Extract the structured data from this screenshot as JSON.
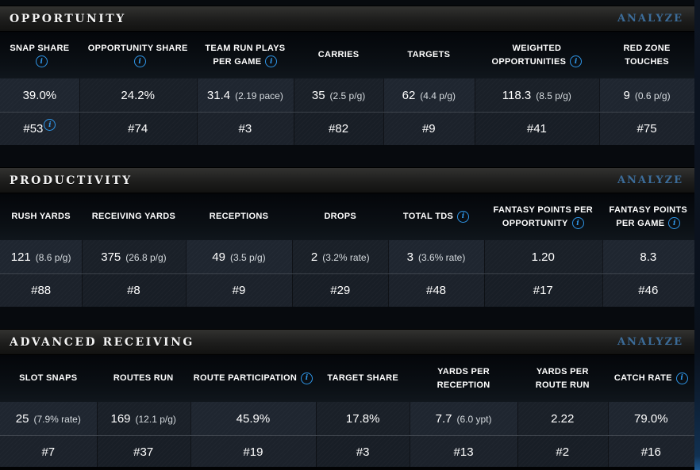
{
  "ui": {
    "accent_color": "#3c6c99",
    "info_icon_color": "#2f96e8",
    "icons": {
      "info": "circled-i"
    }
  },
  "sections": [
    {
      "title": "OPPORTUNITY",
      "analyze_label": "ANALYZE",
      "columns": [
        {
          "label": "SNAP SHARE",
          "info": true,
          "value": "39.0%",
          "rank": "#53",
          "rank_info": true
        },
        {
          "label": "OPPORTUNITY SHARE",
          "info": true,
          "value": "24.2%",
          "rank": "#74"
        },
        {
          "label": "TEAM RUN PLAYS PER GAME",
          "info": true,
          "value": "31.4",
          "note": "(2.19 pace)",
          "rank": "#3"
        },
        {
          "label": "CARRIES",
          "value": "35",
          "note": "(2.5 p/g)",
          "rank": "#82"
        },
        {
          "label": "TARGETS",
          "value": "62",
          "note": "(4.4 p/g)",
          "rank": "#9"
        },
        {
          "label": "WEIGHTED OPPORTUNITIES",
          "info": true,
          "value": "118.3",
          "note": "(8.5 p/g)",
          "rank": "#41"
        },
        {
          "label": "RED ZONE TOUCHES",
          "value": "9",
          "note": "(0.6 p/g)",
          "rank": "#75"
        }
      ]
    },
    {
      "title": "PRODUCTIVITY",
      "analyze_label": "ANALYZE",
      "columns": [
        {
          "label": "RUSH YARDS",
          "value": "121",
          "note": "(8.6 p/g)",
          "rank": "#88"
        },
        {
          "label": "RECEIVING YARDS",
          "value": "375",
          "note": "(26.8 p/g)",
          "rank": "#8"
        },
        {
          "label": "RECEPTIONS",
          "value": "49",
          "note": "(3.5 p/g)",
          "rank": "#9"
        },
        {
          "label": "DROPS",
          "value": "2",
          "note": "(3.2% rate)",
          "rank": "#29"
        },
        {
          "label": "TOTAL TDS",
          "info": true,
          "value": "3",
          "note": "(3.6% rate)",
          "rank": "#48"
        },
        {
          "label": "FANTASY POINTS PER OPPORTUNITY",
          "info": true,
          "value": "1.20",
          "rank": "#17"
        },
        {
          "label": "FANTASY POINTS PER GAME",
          "info": true,
          "value": "8.3",
          "rank": "#46"
        }
      ]
    },
    {
      "title": "ADVANCED RECEIVING",
      "analyze_label": "ANALYZE",
      "columns": [
        {
          "label": "SLOT SNAPS",
          "value": "25",
          "note": "(7.9% rate)",
          "rank": "#7"
        },
        {
          "label": "ROUTES RUN",
          "value": "169",
          "note": "(12.1 p/g)",
          "rank": "#37"
        },
        {
          "label": "ROUTE PARTICIPATION",
          "info": true,
          "value": "45.9%",
          "rank": "#19"
        },
        {
          "label": "TARGET SHARE",
          "value": "17.8%",
          "rank": "#3"
        },
        {
          "label": "YARDS PER RECEPTION",
          "value": "7.7",
          "note": "(6.0 ypt)",
          "rank": "#13"
        },
        {
          "label": "YARDS PER ROUTE RUN",
          "value": "2.22",
          "rank": "#2"
        },
        {
          "label": "CATCH RATE",
          "info": true,
          "value": "79.0%",
          "rank": "#16"
        }
      ]
    }
  ]
}
